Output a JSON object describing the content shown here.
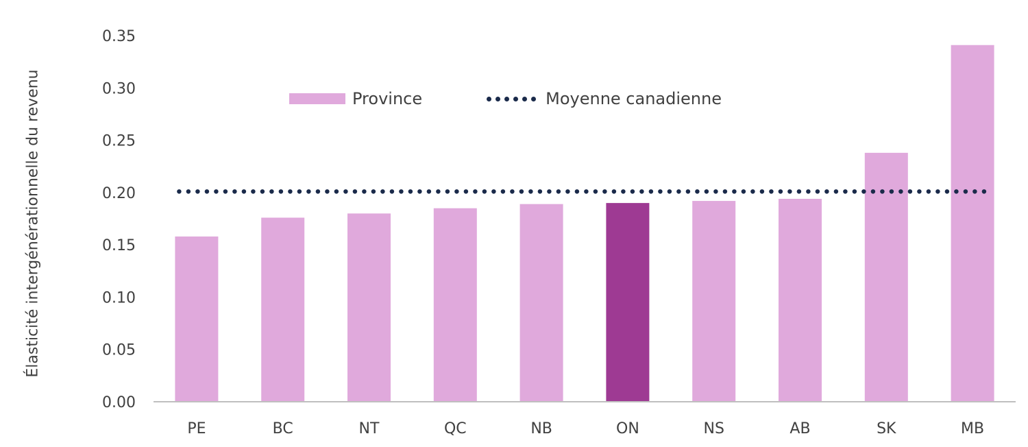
{
  "chart_data": {
    "type": "bar",
    "categories": [
      "PE",
      "BC",
      "NT",
      "QC",
      "NB",
      "ON",
      "NS",
      "AB",
      "SK",
      "MB"
    ],
    "series": [
      {
        "name": "Province",
        "values": [
          0.158,
          0.176,
          0.18,
          0.185,
          0.189,
          0.19,
          0.192,
          0.194,
          0.238,
          0.341
        ]
      }
    ],
    "reference_line": {
      "name": "Moyenne canadienne",
      "value": 0.201,
      "style": "dotted"
    },
    "highlight_category": "ON",
    "ylabel": "Élasticité intergénérationnelle du revenu",
    "xlabel": "",
    "ylim": [
      0,
      0.35
    ],
    "yticks": [
      "0.00",
      "0.05",
      "0.10",
      "0.15",
      "0.20",
      "0.25",
      "0.30",
      "0.35"
    ],
    "grid": false,
    "legend_position": "top-left",
    "colors": {
      "bar": "#e0a9dc",
      "highlight": "#9e3a93",
      "reference": "#1a2a4a",
      "axis": "#bfbfbf",
      "text": "#404040"
    }
  }
}
